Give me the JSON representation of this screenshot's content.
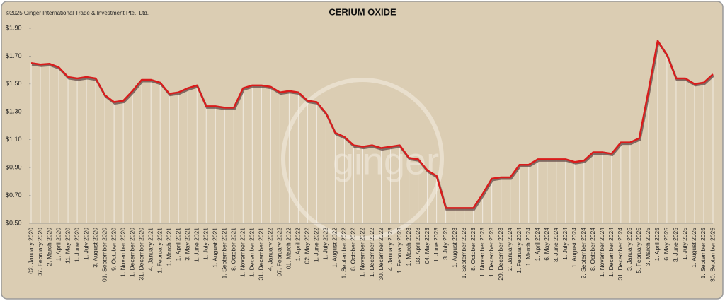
{
  "chart_data": {
    "type": "line",
    "title": "CERIUM OXIDE",
    "copyright": "©2025 Ginger International Trade & Investment Pte., Ltd.",
    "watermark": "ginger",
    "categories": [
      "02. January 2020",
      "07. February 2020",
      "2. March 2020",
      "1. April 2020",
      "11. May 2020",
      "1. June 2020",
      "1. July 2020",
      "3. August 2020",
      "01. September 2020",
      "9. October 2020",
      "1. November 2020",
      "1. December 2020",
      "31. December 2020",
      "4. January 2021",
      "1. February 2021",
      "1. March 2021",
      "1. April 2021",
      "3. May 2021",
      "1. June 2021",
      "1. July 2021",
      "1. August 2021",
      "1. September 2021",
      "8. October 2021",
      "1. November 2021",
      "1. December 2021",
      "31. December 2021",
      "4. January 2022",
      "07. February 2022",
      "01. March 2022",
      "1. April 2022",
      "02. May 2022",
      "1. June 2022",
      "1. July 2022",
      "1. August 2022",
      "1. September 2022",
      "8. October 2022",
      "1. November 2022",
      "1. December 2022",
      "30. December 2022",
      "4. January 2023",
      "1. February 2023",
      "1. March 2023",
      "03. April 2023",
      "04. May 2023",
      "1. June 2023",
      "3. July 2023",
      "1. August 2023",
      "1. September 2023",
      "8. October 2023",
      "1. November 2023",
      "1. December 2023",
      "29. December 2023",
      "2. January 2024",
      "1. February 2024",
      "1. March 2024",
      "1. April 2024",
      "6. May 2024",
      "3. June 2024",
      "1. July 2024",
      "1. August 2024",
      "2. September 2024",
      "8. October 2024",
      "1. November 2024",
      "1. December 2024",
      "31. December 2024",
      "3. January 2025",
      "5. February 2025",
      "3. March 2025",
      "1. April 2025",
      "6. May 2025",
      "3. June 2025",
      "1. July 2025",
      "1. August 2025",
      "1. September 2025",
      "30. September 2025"
    ],
    "series": [
      {
        "color": "#d91c1c",
        "values": [
          1.65,
          1.64,
          1.645,
          1.62,
          1.55,
          1.54,
          1.55,
          1.54,
          1.42,
          1.37,
          1.38,
          1.45,
          1.53,
          1.53,
          1.51,
          1.43,
          1.44,
          1.47,
          1.49,
          1.34,
          1.34,
          1.33,
          1.33,
          1.47,
          1.49,
          1.49,
          1.48,
          1.44,
          1.45,
          1.44,
          1.38,
          1.37,
          1.29,
          1.15,
          1.12,
          1.06,
          1.05,
          1.06,
          1.04,
          1.05,
          1.06,
          0.97,
          0.96,
          0.88,
          0.84,
          0.61,
          0.61,
          0.61,
          0.61,
          0.71,
          0.82,
          0.83,
          0.83,
          0.92,
          0.92,
          0.96,
          0.96,
          0.96,
          0.96,
          0.94,
          0.95,
          1.01,
          1.01,
          1.0,
          1.08,
          1.08,
          1.11,
          1.45,
          1.81,
          1.71,
          1.54,
          1.54,
          1.5,
          1.51,
          1.57
        ]
      }
    ],
    "ylim": [
      0.5,
      1.9
    ],
    "yticks": [
      {
        "value": 0.5,
        "label": "$0.50"
      },
      {
        "value": 0.7,
        "label": "$0.70"
      },
      {
        "value": 0.9,
        "label": "$0.90"
      },
      {
        "value": 1.1,
        "label": "$1.10"
      },
      {
        "value": 1.3,
        "label": "$1.30"
      },
      {
        "value": 1.5,
        "label": "$1.50"
      },
      {
        "value": 1.7,
        "label": "$1.70"
      },
      {
        "value": 1.9,
        "label": "$1.90"
      }
    ]
  }
}
